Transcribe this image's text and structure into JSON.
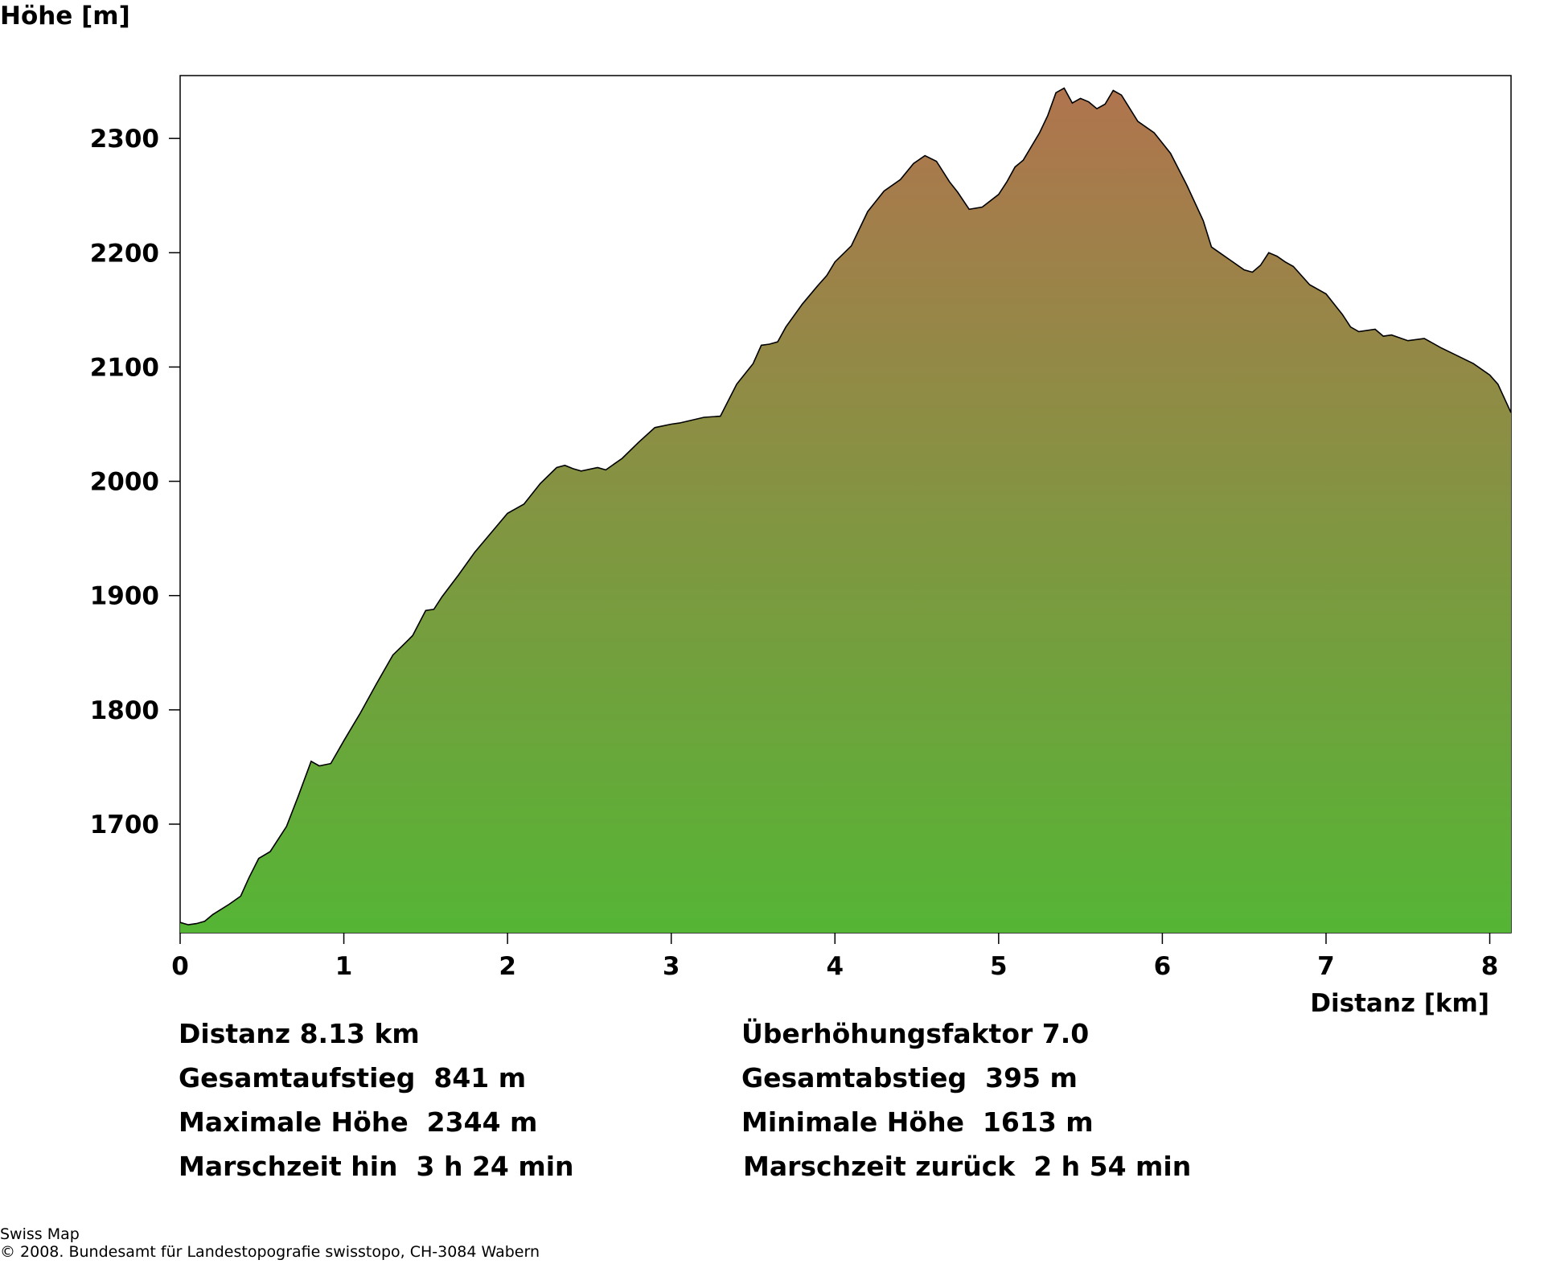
{
  "chart_data": {
    "type": "area",
    "ylabel": "Höhe [m]",
    "xlabel": "Distanz [km]",
    "xlim": [
      0,
      8.13
    ],
    "ylim": [
      1605,
      2355
    ],
    "x_ticks": [
      0,
      1,
      2,
      3,
      4,
      5,
      6,
      7,
      8
    ],
    "y_ticks": [
      1700,
      1800,
      1900,
      2000,
      2100,
      2200,
      2300
    ],
    "grid": false,
    "gradient_colors": {
      "low": "#55b535",
      "high": "#b0744e"
    },
    "x": [
      0,
      0.05,
      0.1,
      0.15,
      0.2,
      0.3,
      0.37,
      0.42,
      0.48,
      0.55,
      0.65,
      0.72,
      0.8,
      0.85,
      0.92,
      1.0,
      1.05,
      1.1,
      1.2,
      1.3,
      1.35,
      1.42,
      1.5,
      1.55,
      1.6,
      1.7,
      1.8,
      1.9,
      2.0,
      2.05,
      2.1,
      2.2,
      2.3,
      2.35,
      2.4,
      2.45,
      2.55,
      2.6,
      2.7,
      2.8,
      2.9,
      3.0,
      3.05,
      3.2,
      3.3,
      3.4,
      3.5,
      3.55,
      3.6,
      3.65,
      3.7,
      3.8,
      3.9,
      3.95,
      4.0,
      4.1,
      4.2,
      4.3,
      4.4,
      4.48,
      4.55,
      4.62,
      4.7,
      4.75,
      4.82,
      4.9,
      5.0,
      5.05,
      5.1,
      5.15,
      5.25,
      5.3,
      5.35,
      5.4,
      5.45,
      5.5,
      5.55,
      5.6,
      5.65,
      5.7,
      5.75,
      5.85,
      5.95,
      6.0,
      6.05,
      6.15,
      6.25,
      6.3,
      6.4,
      6.5,
      6.55,
      6.6,
      6.65,
      6.7,
      6.75,
      6.8,
      6.9,
      7.0,
      7.05,
      7.1,
      7.15,
      7.2,
      7.3,
      7.35,
      7.4,
      7.5,
      7.6,
      7.7,
      7.8,
      7.9,
      8.0,
      8.05,
      8.13
    ],
    "y": [
      1614,
      1612,
      1613,
      1615,
      1621,
      1630,
      1637,
      1653,
      1670,
      1676,
      1698,
      1724,
      1755,
      1751,
      1753,
      1773,
      1785,
      1797,
      1823,
      1848,
      1855,
      1865,
      1887,
      1888,
      1899,
      1918,
      1938,
      1955,
      1972,
      1976,
      1980,
      1998,
      2012,
      2014,
      2011,
      2009,
      2012,
      2010,
      2020,
      2034,
      2047,
      2050,
      2051,
      2056,
      2057,
      2085,
      2103,
      2119,
      2120,
      2122,
      2135,
      2155,
      2172,
      2180,
      2192,
      2206,
      2236,
      2254,
      2264,
      2278,
      2285,
      2280,
      2262,
      2253,
      2238,
      2240,
      2251,
      2262,
      2275,
      2281,
      2305,
      2320,
      2340,
      2344,
      2331,
      2335,
      2332,
      2326,
      2330,
      2342,
      2338,
      2315,
      2305,
      2296,
      2287,
      2259,
      2228,
      2205,
      2195,
      2185,
      2183,
      2189,
      2200,
      2197,
      2192,
      2188,
      2172,
      2164,
      2155,
      2146,
      2135,
      2131,
      2133,
      2127,
      2128,
      2123,
      2125,
      2117,
      2110,
      2103,
      2093,
      2085,
      2060
    ]
  },
  "stats": {
    "distanz": "Distanz 8.13 km",
    "ueberhoehung": "Überhöhungsfaktor 7.0",
    "aufstieg": "Gesamtaufstieg  841 m",
    "abstieg": "Gesamtabstieg  395 m",
    "max_hoehe": "Maximale Höhe  2344 m",
    "min_hoehe": "Minimale Höhe  1613 m",
    "marschzeit_hin": "Marschzeit hin  3 h 24 min",
    "marschzeit_zurueck": "Marschzeit zurück  2 h 54 min"
  },
  "credits": {
    "line1": "Swiss Map",
    "line2": "© 2008. Bundesamt für Landestopografie swisstopo, CH-3084 Wabern"
  }
}
